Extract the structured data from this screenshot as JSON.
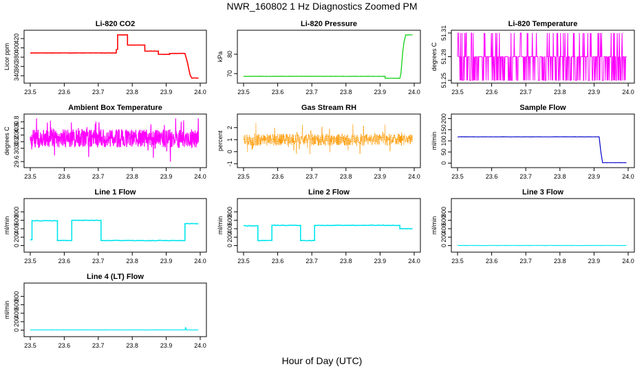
{
  "figure": {
    "title": "NWR_160802  1 Hz Diagnostics Zoomed PM",
    "xlabel": "Hour of Day (UTC)"
  },
  "chart_data": [
    {
      "id": "co2",
      "type": "line",
      "title": "Li-820 CO2",
      "ylabel": "Licor ppm",
      "color": "#ff0000",
      "xlim": [
        23.5,
        24.0
      ],
      "xticks": [
        "23.5",
        "23.6",
        "23.7",
        "23.8",
        "23.9",
        "24.0"
      ],
      "ylim": [
        330,
        432
      ],
      "yticks": [
        "340",
        "360",
        "380",
        "400",
        "420"
      ],
      "series": [
        {
          "name": "CO2",
          "x": [
            23.5,
            23.753,
            23.753,
            23.757,
            23.757,
            23.786,
            23.786,
            23.837,
            23.837,
            23.877,
            23.877,
            23.91,
            23.91,
            23.955,
            23.958,
            23.962,
            23.966,
            23.97,
            23.975,
            23.995
          ],
          "y": [
            389,
            389,
            396,
            397,
            428,
            428,
            406,
            406,
            393,
            393,
            386,
            386,
            388,
            388,
            380,
            370,
            356,
            342,
            335,
            335
          ]
        }
      ]
    },
    {
      "id": "pressure",
      "type": "line",
      "title": "Li-820 Pressure",
      "ylabel": "kPa",
      "color": "#00cc00",
      "xlim": [
        23.5,
        24.0
      ],
      "xticks": [
        "23.5",
        "23.6",
        "23.7",
        "23.8",
        "23.9",
        "24.0"
      ],
      "ylim": [
        66.5,
        91
      ],
      "yticks": [
        "70",
        "80"
      ],
      "series": [
        {
          "name": "Pressure",
          "x": [
            23.5,
            23.915,
            23.915,
            23.958,
            23.961,
            23.964,
            23.967,
            23.97,
            23.975,
            23.995
          ],
          "y": [
            68.6,
            68.6,
            67.6,
            67.6,
            70,
            76,
            82,
            86,
            90,
            90
          ]
        }
      ]
    },
    {
      "id": "licor_temp",
      "type": "line",
      "title": "Li-820 Temperature",
      "ylabel": "degrees C",
      "color": "#ff00ff",
      "xlim": [
        23.5,
        24.0
      ],
      "xticks": [
        "23.5",
        "23.6",
        "23.7",
        "23.8",
        "23.9",
        "24.0"
      ],
      "ylim": [
        51.25,
        51.31
      ],
      "yticks": [
        "51.25",
        "51.28",
        "51.31"
      ],
      "levels": [
        51.25,
        51.28,
        51.31
      ],
      "series": [
        {
          "name": "Temperature",
          "x": [
            23.5,
            23.995
          ],
          "y": [
            51.28,
            51.28
          ]
        }
      ]
    },
    {
      "id": "ambient_box",
      "type": "line",
      "title": "Ambient Box Temperature",
      "ylabel": "degrees C",
      "color": "#ff00ff",
      "xlim": [
        23.5,
        24.0
      ],
      "xticks": [
        "23.5",
        "23.6",
        "23.7",
        "23.8",
        "23.9",
        "24.0"
      ],
      "ylim": [
        29.5,
        30.95
      ],
      "yticks": [
        "29.6",
        "30.0",
        "30.2",
        "30.4",
        "30.6",
        "30.8"
      ],
      "series": [
        {
          "name": "Box Temp",
          "x": [
            23.5,
            23.995
          ],
          "y": [
            30.3,
            30.3
          ]
        }
      ]
    },
    {
      "id": "gas_rh",
      "type": "scatter",
      "title": "Gas Stream RH",
      "ylabel": "percent",
      "color": "#ff9900",
      "xlim": [
        23.5,
        24.0
      ],
      "xticks": [
        "23.5",
        "23.6",
        "23.7",
        "23.8",
        "23.9",
        "24.0"
      ],
      "ylim": [
        -1.1,
        2.9
      ],
      "yticks": [
        "-1",
        "0",
        "1",
        "2"
      ],
      "series": [
        {
          "name": "RH",
          "x": [
            23.5,
            23.995
          ],
          "y": [
            1.0,
            1.0
          ]
        }
      ]
    },
    {
      "id": "sample_flow",
      "type": "line",
      "title": "Sample Flow",
      "ylabel": "ml/min",
      "color": "#0000cc",
      "xlim": [
        23.5,
        24.0
      ],
      "xticks": [
        "23.5",
        "23.6",
        "23.7",
        "23.8",
        "23.9",
        "24.0"
      ],
      "ylim": [
        -8,
        208
      ],
      "yticks": [
        "0",
        "50",
        "100",
        "150",
        "200"
      ],
      "series": [
        {
          "name": "Sample Flow",
          "x": [
            23.5,
            23.915,
            23.92,
            23.925,
            23.995
          ],
          "y": [
            118,
            118,
            50,
            2,
            2
          ]
        }
      ]
    },
    {
      "id": "line1",
      "type": "line",
      "title": "Line 1 Flow",
      "ylabel": "ml/min",
      "color": "#00e5ee",
      "xlim": [
        23.5,
        24.0
      ],
      "xticks": [
        "23.5",
        "23.6",
        "23.7",
        "23.8",
        "23.9",
        "24.0"
      ],
      "ylim": [
        -90,
        1050
      ],
      "yticks": [
        "0",
        "200",
        "400",
        "600",
        "800"
      ],
      "series": [
        {
          "name": "Line 1",
          "x": [
            23.5,
            23.505,
            23.505,
            23.58,
            23.58,
            23.622,
            23.622,
            23.708,
            23.708,
            23.955,
            23.955,
            23.995
          ],
          "y": [
            140,
            140,
            590,
            590,
            120,
            120,
            600,
            600,
            120,
            120,
            520,
            520
          ]
        }
      ]
    },
    {
      "id": "line2",
      "type": "line",
      "title": "Line 2 Flow",
      "ylabel": "ml/min",
      "color": "#00e5ee",
      "xlim": [
        23.5,
        24.0
      ],
      "xticks": [
        "23.5",
        "23.6",
        "23.7",
        "23.8",
        "23.9",
        "24.0"
      ],
      "ylim": [
        -90,
        1050
      ],
      "yticks": [
        "0",
        "200",
        "400",
        "600",
        "800"
      ],
      "series": [
        {
          "name": "Line 2",
          "x": [
            23.5,
            23.542,
            23.542,
            23.583,
            23.583,
            23.667,
            23.667,
            23.708,
            23.708,
            23.958,
            23.958,
            23.995
          ],
          "y": [
            470,
            470,
            120,
            120,
            480,
            480,
            120,
            120,
            480,
            480,
            400,
            400
          ]
        }
      ]
    },
    {
      "id": "line3",
      "type": "line",
      "title": "Line 3 Flow",
      "ylabel": "ml/min",
      "color": "#00e5ee",
      "xlim": [
        23.5,
        24.0
      ],
      "xticks": [
        "23.5",
        "23.6",
        "23.7",
        "23.8",
        "23.9",
        "24.0"
      ],
      "ylim": [
        -90,
        1050
      ],
      "yticks": [
        "0",
        "200",
        "400",
        "600",
        "800"
      ],
      "series": [
        {
          "name": "Line 3",
          "x": [
            23.5,
            23.995
          ],
          "y": [
            2,
            2
          ]
        }
      ]
    },
    {
      "id": "line4",
      "type": "line",
      "title": "Line 4 (LT) Flow",
      "ylabel": "ml/min",
      "color": "#00e5ee",
      "xlim": [
        23.5,
        24.0
      ],
      "xticks": [
        "23.5",
        "23.6",
        "23.7",
        "23.8",
        "23.9",
        "24.0"
      ],
      "ylim": [
        -90,
        1050
      ],
      "yticks": [
        "0",
        "200",
        "400",
        "600",
        "800"
      ],
      "series": [
        {
          "name": "Line 4",
          "x": [
            23.5,
            23.955,
            23.957,
            23.959,
            23.995
          ],
          "y": [
            5,
            5,
            70,
            5,
            5
          ]
        }
      ]
    }
  ]
}
